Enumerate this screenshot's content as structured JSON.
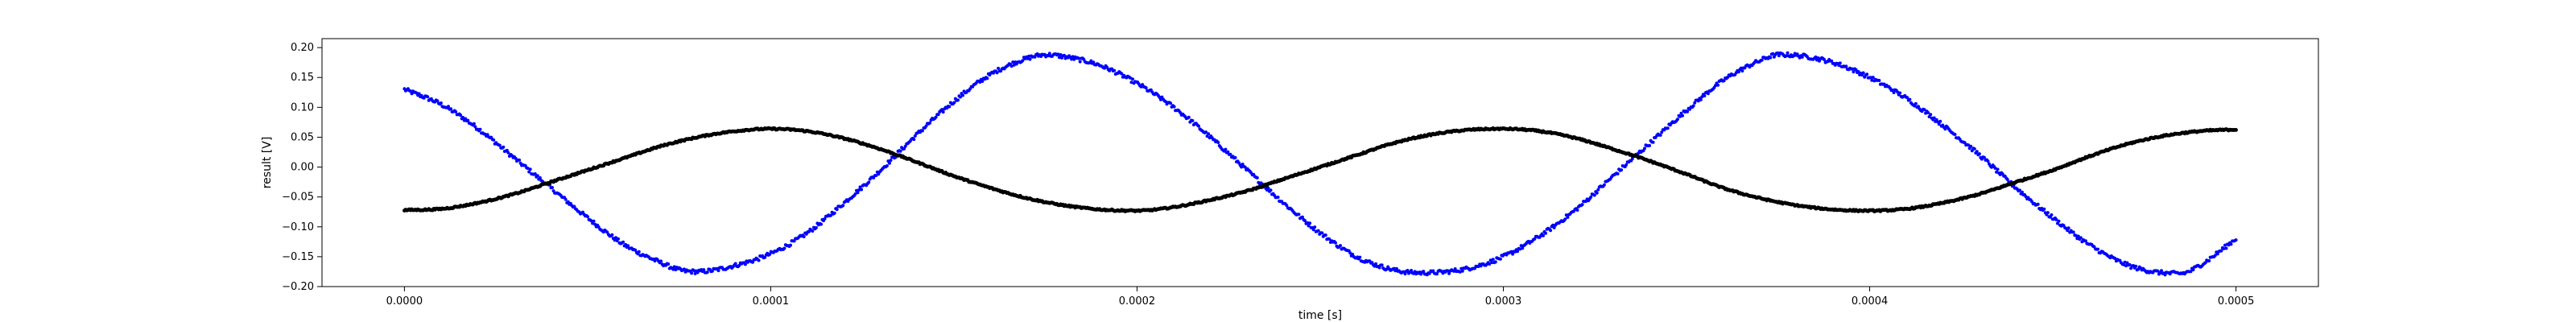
{
  "chart_data": {
    "type": "scatter",
    "title": "",
    "xlabel": "time [s]",
    "ylabel": "result [V]",
    "xlim": [
      -2.25e-05,
      0.0005225
    ],
    "ylim": [
      -0.2,
      0.215
    ],
    "x_ticks": [
      0.0,
      0.0001,
      0.0002,
      0.0003,
      0.0004,
      0.0005
    ],
    "x_tick_labels": [
      "0.0000",
      "0.0001",
      "0.0002",
      "0.0003",
      "0.0004",
      "0.0005"
    ],
    "y_ticks": [
      -0.2,
      -0.15,
      -0.1,
      -0.05,
      0.0,
      0.05,
      0.1,
      0.15,
      0.2
    ],
    "y_tick_labels": [
      "−0.20",
      "−0.15",
      "−0.10",
      "−0.05",
      "0.00",
      "0.05",
      "0.10",
      "0.15",
      "0.20"
    ],
    "grid": false,
    "legend": false,
    "series": [
      {
        "color": "#0000ff",
        "marker": "dot",
        "x_range": [
          0.0,
          0.0005
        ],
        "points": [
          [
            0.0,
            0.13
          ],
          [
            1e-05,
            0.105
          ],
          [
            2e-05,
            0.065
          ],
          [
            3e-05,
            0.015
          ],
          [
            4e-05,
            -0.035
          ],
          [
            5e-05,
            -0.085
          ],
          [
            6e-05,
            -0.13
          ],
          [
            7e-05,
            -0.16
          ],
          [
            7.5e-05,
            -0.172
          ],
          [
            8e-05,
            -0.175
          ],
          [
            9e-05,
            -0.165
          ],
          [
            0.0001,
            -0.145
          ],
          [
            0.00011,
            -0.11
          ],
          [
            0.00012,
            -0.06
          ],
          [
            0.00013,
            -0.005
          ],
          [
            0.00014,
            0.055
          ],
          [
            0.00015,
            0.11
          ],
          [
            0.00016,
            0.155
          ],
          [
            0.00017,
            0.182
          ],
          [
            0.000175,
            0.188
          ],
          [
            0.00018,
            0.185
          ],
          [
            0.00019,
            0.17
          ],
          [
            0.0002,
            0.14
          ],
          [
            0.00021,
            0.1
          ],
          [
            0.00022,
            0.05
          ],
          [
            0.00023,
            -0.005
          ],
          [
            0.00024,
            -0.06
          ],
          [
            0.00025,
            -0.11
          ],
          [
            0.00026,
            -0.15
          ],
          [
            0.00027,
            -0.172
          ],
          [
            0.000278,
            -0.177
          ],
          [
            0.00029,
            -0.17
          ],
          [
            0.0003,
            -0.15
          ],
          [
            0.00031,
            -0.115
          ],
          [
            0.00032,
            -0.07
          ],
          [
            0.00033,
            -0.015
          ],
          [
            0.00034,
            0.04
          ],
          [
            0.00035,
            0.095
          ],
          [
            0.00036,
            0.145
          ],
          [
            0.00037,
            0.178
          ],
          [
            0.000375,
            0.188
          ],
          [
            0.00038,
            0.187
          ],
          [
            0.00039,
            0.175
          ],
          [
            0.0004,
            0.15
          ],
          [
            0.00041,
            0.115
          ],
          [
            0.00042,
            0.07
          ],
          [
            0.00043,
            0.02
          ],
          [
            0.00044,
            -0.035
          ],
          [
            0.00045,
            -0.085
          ],
          [
            0.00046,
            -0.13
          ],
          [
            0.00047,
            -0.163
          ],
          [
            0.00048,
            -0.177
          ],
          [
            0.000485,
            -0.178
          ],
          [
            0.00049,
            -0.165
          ],
          [
            0.0005,
            -0.12
          ]
        ]
      },
      {
        "color": "#000000",
        "marker": "dot",
        "x_range": [
          0.0,
          0.0005
        ],
        "points": [
          [
            0.0,
            -0.072
          ],
          [
            1e-05,
            -0.07
          ],
          [
            2e-05,
            -0.06
          ],
          [
            3e-05,
            -0.045
          ],
          [
            4e-05,
            -0.025
          ],
          [
            5e-05,
            -0.005
          ],
          [
            6e-05,
            0.015
          ],
          [
            7e-05,
            0.035
          ],
          [
            8e-05,
            0.05
          ],
          [
            9e-05,
            0.06
          ],
          [
            0.0001,
            0.064
          ],
          [
            0.00011,
            0.06
          ],
          [
            0.00012,
            0.048
          ],
          [
            0.00013,
            0.03
          ],
          [
            0.00014,
            0.008
          ],
          [
            0.00015,
            -0.015
          ],
          [
            0.00016,
            -0.035
          ],
          [
            0.00017,
            -0.052
          ],
          [
            0.00018,
            -0.064
          ],
          [
            0.00019,
            -0.071
          ],
          [
            0.0002,
            -0.073
          ],
          [
            0.00021,
            -0.067
          ],
          [
            0.00022,
            -0.055
          ],
          [
            0.00023,
            -0.04
          ],
          [
            0.00024,
            -0.02
          ],
          [
            0.00025,
            0.0
          ],
          [
            0.00026,
            0.02
          ],
          [
            0.00027,
            0.04
          ],
          [
            0.00028,
            0.054
          ],
          [
            0.00029,
            0.062
          ],
          [
            0.0003,
            0.064
          ],
          [
            0.00031,
            0.06
          ],
          [
            0.00032,
            0.048
          ],
          [
            0.00033,
            0.03
          ],
          [
            0.00034,
            0.01
          ],
          [
            0.00035,
            -0.012
          ],
          [
            0.00036,
            -0.035
          ],
          [
            0.00037,
            -0.052
          ],
          [
            0.00038,
            -0.064
          ],
          [
            0.00039,
            -0.071
          ],
          [
            0.0004,
            -0.073
          ],
          [
            0.00041,
            -0.07
          ],
          [
            0.00042,
            -0.06
          ],
          [
            0.00043,
            -0.045
          ],
          [
            0.00044,
            -0.025
          ],
          [
            0.00045,
            -0.005
          ],
          [
            0.00046,
            0.018
          ],
          [
            0.00047,
            0.038
          ],
          [
            0.00048,
            0.052
          ],
          [
            0.00049,
            0.06
          ],
          [
            0.0005,
            0.063
          ]
        ]
      }
    ]
  }
}
